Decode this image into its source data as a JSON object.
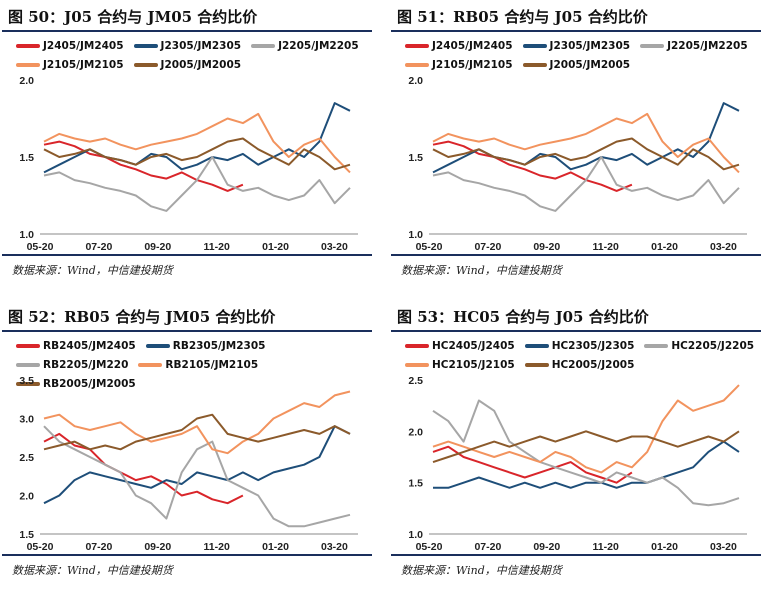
{
  "source_note": "数据来源：Wind，中信建投期货",
  "colors": {
    "red": "#d9252a",
    "navy": "#1e4e79",
    "gray": "#a6a6a6",
    "orange": "#f2935e",
    "brown": "#8b5a2b"
  },
  "chart_data": [
    {
      "type": "line",
      "title": "图 50：J05 合约与 JM05 合约比价",
      "x_ticks": [
        "05-20",
        "07-20",
        "09-20",
        "11-20",
        "01-20",
        "03-20"
      ],
      "ylim": [
        1.0,
        2.0
      ],
      "y_ticks": [
        "1.0",
        "1.5",
        "2.0"
      ],
      "series": [
        {
          "name": "J2405/JM2405",
          "color": "#d9252a",
          "values": [
            1.58,
            1.6,
            1.57,
            1.52,
            1.5,
            1.45,
            1.42,
            1.38,
            1.36,
            1.4,
            1.35,
            1.32,
            1.28,
            1.32
          ]
        },
        {
          "name": "J2305/JM2305",
          "color": "#1e4e79",
          "values": [
            1.4,
            1.45,
            1.5,
            1.55,
            1.5,
            1.48,
            1.45,
            1.52,
            1.5,
            1.42,
            1.45,
            1.5,
            1.48,
            1.52,
            1.45,
            1.5,
            1.55,
            1.5,
            1.6,
            1.85,
            1.8
          ]
        },
        {
          "name": "J2205/JM2205",
          "color": "#a6a6a6",
          "values": [
            1.38,
            1.4,
            1.35,
            1.33,
            1.3,
            1.28,
            1.25,
            1.18,
            1.15,
            1.25,
            1.35,
            1.5,
            1.32,
            1.28,
            1.3,
            1.25,
            1.22,
            1.25,
            1.35,
            1.2,
            1.3
          ]
        },
        {
          "name": "J2105/JM2105",
          "color": "#f2935e",
          "values": [
            1.6,
            1.65,
            1.62,
            1.6,
            1.62,
            1.58,
            1.55,
            1.58,
            1.6,
            1.62,
            1.65,
            1.7,
            1.75,
            1.72,
            1.78,
            1.6,
            1.5,
            1.58,
            1.62,
            1.5,
            1.4
          ]
        },
        {
          "name": "J2005/JM2005",
          "color": "#8b5a2b",
          "values": [
            1.55,
            1.5,
            1.52,
            1.55,
            1.5,
            1.48,
            1.45,
            1.5,
            1.52,
            1.48,
            1.5,
            1.55,
            1.6,
            1.62,
            1.55,
            1.5,
            1.45,
            1.55,
            1.5,
            1.42,
            1.45
          ]
        }
      ]
    },
    {
      "type": "line",
      "title": "图 51：RB05 合约与 J05 合约比价",
      "x_ticks": [
        "05-20",
        "07-20",
        "09-20",
        "11-20",
        "01-20",
        "03-20"
      ],
      "ylim": [
        1.0,
        2.0
      ],
      "y_ticks": [
        "1.0",
        "1.5",
        "2.0"
      ],
      "series": [
        {
          "name": "J2405/JM2405",
          "color": "#d9252a",
          "values": [
            1.58,
            1.6,
            1.57,
            1.52,
            1.5,
            1.45,
            1.42,
            1.38,
            1.36,
            1.4,
            1.35,
            1.32,
            1.28,
            1.32
          ]
        },
        {
          "name": "J2305/JM2305",
          "color": "#1e4e79",
          "values": [
            1.4,
            1.45,
            1.5,
            1.55,
            1.5,
            1.48,
            1.45,
            1.52,
            1.5,
            1.42,
            1.45,
            1.5,
            1.48,
            1.52,
            1.45,
            1.5,
            1.55,
            1.5,
            1.6,
            1.85,
            1.8
          ]
        },
        {
          "name": "J2205/JM2205",
          "color": "#a6a6a6",
          "values": [
            1.38,
            1.4,
            1.35,
            1.33,
            1.3,
            1.28,
            1.25,
            1.18,
            1.15,
            1.25,
            1.35,
            1.5,
            1.32,
            1.28,
            1.3,
            1.25,
            1.22,
            1.25,
            1.35,
            1.2,
            1.3
          ]
        },
        {
          "name": "J2105/JM2105",
          "color": "#f2935e",
          "values": [
            1.6,
            1.65,
            1.62,
            1.6,
            1.62,
            1.58,
            1.55,
            1.58,
            1.6,
            1.62,
            1.65,
            1.7,
            1.75,
            1.72,
            1.78,
            1.6,
            1.5,
            1.58,
            1.62,
            1.5,
            1.4
          ]
        },
        {
          "name": "J2005/JM2005",
          "color": "#8b5a2b",
          "values": [
            1.55,
            1.5,
            1.52,
            1.55,
            1.5,
            1.48,
            1.45,
            1.5,
            1.52,
            1.48,
            1.5,
            1.55,
            1.6,
            1.62,
            1.55,
            1.5,
            1.45,
            1.55,
            1.5,
            1.42,
            1.45
          ]
        }
      ]
    },
    {
      "type": "line",
      "title": "图 52：RB05 合约与 JM05 合约比价",
      "x_ticks": [
        "05-20",
        "07-20",
        "09-20",
        "11-20",
        "01-20",
        "03-20"
      ],
      "ylim": [
        1.5,
        3.5
      ],
      "y_ticks": [
        "1.5",
        "2.0",
        "2.5",
        "3.0",
        "3.5"
      ],
      "series": [
        {
          "name": "RB2405/JM2405",
          "color": "#d9252a",
          "values": [
            2.7,
            2.8,
            2.65,
            2.6,
            2.4,
            2.3,
            2.2,
            2.25,
            2.15,
            2.0,
            2.05,
            1.95,
            1.9,
            2.0
          ]
        },
        {
          "name": "RB2305/JM2305",
          "color": "#1e4e79",
          "values": [
            1.9,
            2.0,
            2.2,
            2.3,
            2.25,
            2.2,
            2.15,
            2.1,
            2.2,
            2.15,
            2.3,
            2.25,
            2.2,
            2.3,
            2.2,
            2.3,
            2.35,
            2.4,
            2.5,
            2.9,
            2.8
          ]
        },
        {
          "name": "RB2205/JM220",
          "color": "#a6a6a6",
          "values": [
            2.9,
            2.7,
            2.6,
            2.5,
            2.4,
            2.3,
            2.0,
            1.9,
            1.7,
            2.3,
            2.6,
            2.7,
            2.2,
            2.1,
            2.0,
            1.7,
            1.6,
            1.6,
            1.65,
            1.7,
            1.75
          ]
        },
        {
          "name": "RB2105/JM2105",
          "color": "#f2935e",
          "values": [
            3.0,
            3.05,
            2.9,
            2.85,
            2.9,
            2.95,
            2.8,
            2.7,
            2.75,
            2.8,
            2.9,
            2.6,
            2.55,
            2.7,
            2.8,
            3.0,
            3.1,
            3.2,
            3.15,
            3.3,
            3.35
          ]
        },
        {
          "name": "RB2005/JM2005",
          "color": "#8b5a2b",
          "values": [
            2.6,
            2.65,
            2.7,
            2.6,
            2.65,
            2.6,
            2.7,
            2.75,
            2.8,
            2.85,
            3.0,
            3.05,
            2.8,
            2.75,
            2.7,
            2.75,
            2.8,
            2.85,
            2.8,
            2.9,
            2.8
          ]
        }
      ]
    },
    {
      "type": "line",
      "title": "图 53：HC05 合约与 J05 合约比价",
      "x_ticks": [
        "05-20",
        "07-20",
        "09-20",
        "11-20",
        "01-20",
        "03-20"
      ],
      "ylim": [
        1.0,
        2.5
      ],
      "y_ticks": [
        "1.0",
        "1.5",
        "2.0",
        "2.5"
      ],
      "series": [
        {
          "name": "HC2405/J2405",
          "color": "#d9252a",
          "values": [
            1.8,
            1.85,
            1.75,
            1.7,
            1.65,
            1.6,
            1.55,
            1.6,
            1.65,
            1.7,
            1.6,
            1.55,
            1.5,
            1.6
          ]
        },
        {
          "name": "HC2305/J2305",
          "color": "#1e4e79",
          "values": [
            1.45,
            1.45,
            1.5,
            1.55,
            1.5,
            1.45,
            1.5,
            1.45,
            1.5,
            1.45,
            1.5,
            1.5,
            1.45,
            1.5,
            1.5,
            1.55,
            1.6,
            1.65,
            1.8,
            1.9,
            1.8
          ]
        },
        {
          "name": "HC2205/J2205",
          "color": "#a6a6a6",
          "values": [
            2.2,
            2.1,
            1.9,
            2.3,
            2.2,
            1.9,
            1.8,
            1.7,
            1.65,
            1.6,
            1.55,
            1.5,
            1.6,
            1.55,
            1.5,
            1.55,
            1.45,
            1.3,
            1.28,
            1.3,
            1.35
          ]
        },
        {
          "name": "HC2105/J2105",
          "color": "#f2935e",
          "values": [
            1.85,
            1.9,
            1.85,
            1.8,
            1.75,
            1.8,
            1.75,
            1.7,
            1.8,
            1.75,
            1.65,
            1.6,
            1.7,
            1.65,
            1.8,
            2.1,
            2.3,
            2.2,
            2.25,
            2.3,
            2.45
          ]
        },
        {
          "name": "HC2005/J2005",
          "color": "#8b5a2b",
          "values": [
            1.7,
            1.75,
            1.8,
            1.85,
            1.9,
            1.85,
            1.9,
            1.95,
            1.9,
            1.95,
            2.0,
            1.95,
            1.9,
            1.95,
            1.95,
            1.9,
            1.85,
            1.9,
            1.95,
            1.9,
            2.0
          ]
        }
      ]
    }
  ]
}
